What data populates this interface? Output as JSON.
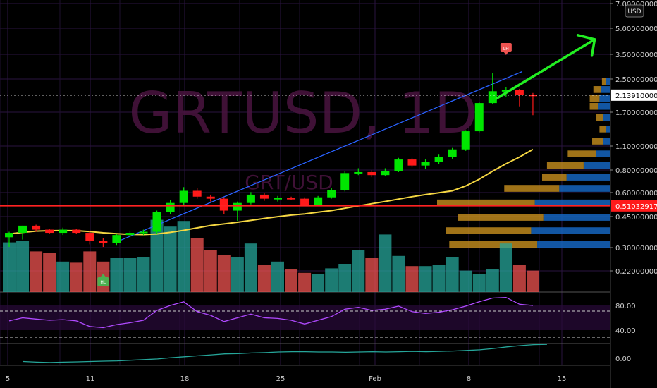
{
  "watermark": {
    "symbol": "GRTUSD, 1D",
    "pair": "GRT/USD"
  },
  "currency_badge": "USD",
  "price_axis": [
    "7.00000000",
    "5.00000000",
    "3.50000000",
    "2.50000000",
    "1.70000000",
    "1.10000000",
    "0.80000000",
    "0.60000000",
    "0.45000000",
    "0.30000000",
    "0.22000000"
  ],
  "current_price_label": "2.13910000",
  "support_price_label": "0.51032917",
  "date_axis": [
    "5",
    "11",
    "18",
    "25",
    "Feb",
    "8",
    "15"
  ],
  "rsi_axis": [
    "80.00",
    "40.00"
  ],
  "osc_axis": [
    "0.00"
  ],
  "markers": {
    "high": "LH",
    "low": "HL"
  },
  "colors": {
    "up": "#00e600",
    "down": "#ff1a1a",
    "vol_up": "#26a69a",
    "vol_down": "#ef5350",
    "ma": "#f5d742",
    "trend": "#2962ff",
    "arrow": "#22ee22",
    "support": "#ff2222",
    "rsi": "#b04aff"
  },
  "chart_data": {
    "type": "candlestick",
    "candles": [
      {
        "o": 0.34,
        "h": 0.365,
        "l": 0.3,
        "c": 0.36
      },
      {
        "o": 0.36,
        "h": 0.395,
        "l": 0.33,
        "c": 0.395
      },
      {
        "o": 0.395,
        "h": 0.4,
        "l": 0.365,
        "c": 0.375
      },
      {
        "o": 0.375,
        "h": 0.38,
        "l": 0.355,
        "c": 0.36
      },
      {
        "o": 0.36,
        "h": 0.385,
        "l": 0.35,
        "c": 0.375
      },
      {
        "o": 0.375,
        "h": 0.38,
        "l": 0.355,
        "c": 0.36
      },
      {
        "o": 0.36,
        "h": 0.37,
        "l": 0.31,
        "c": 0.325
      },
      {
        "o": 0.325,
        "h": 0.335,
        "l": 0.3,
        "c": 0.315
      },
      {
        "o": 0.315,
        "h": 0.355,
        "l": 0.305,
        "c": 0.35
      },
      {
        "o": 0.35,
        "h": 0.37,
        "l": 0.34,
        "c": 0.36
      },
      {
        "o": 0.36,
        "h": 0.375,
        "l": 0.35,
        "c": 0.365
      },
      {
        "o": 0.365,
        "h": 0.48,
        "l": 0.355,
        "c": 0.47
      },
      {
        "o": 0.47,
        "h": 0.55,
        "l": 0.46,
        "c": 0.53
      },
      {
        "o": 0.53,
        "h": 0.65,
        "l": 0.51,
        "c": 0.62
      },
      {
        "o": 0.62,
        "h": 0.64,
        "l": 0.56,
        "c": 0.575
      },
      {
        "o": 0.575,
        "h": 0.59,
        "l": 0.54,
        "c": 0.56
      },
      {
        "o": 0.56,
        "h": 0.57,
        "l": 0.46,
        "c": 0.48
      },
      {
        "o": 0.48,
        "h": 0.54,
        "l": 0.42,
        "c": 0.53
      },
      {
        "o": 0.53,
        "h": 0.61,
        "l": 0.52,
        "c": 0.59
      },
      {
        "o": 0.59,
        "h": 0.6,
        "l": 0.545,
        "c": 0.56
      },
      {
        "o": 0.56,
        "h": 0.58,
        "l": 0.54,
        "c": 0.565
      },
      {
        "o": 0.565,
        "h": 0.575,
        "l": 0.55,
        "c": 0.56
      },
      {
        "o": 0.56,
        "h": 0.57,
        "l": 0.51,
        "c": 0.515
      },
      {
        "o": 0.515,
        "h": 0.58,
        "l": 0.51,
        "c": 0.57
      },
      {
        "o": 0.57,
        "h": 0.64,
        "l": 0.56,
        "c": 0.625
      },
      {
        "o": 0.625,
        "h": 0.8,
        "l": 0.615,
        "c": 0.78
      },
      {
        "o": 0.78,
        "h": 0.83,
        "l": 0.76,
        "c": 0.79
      },
      {
        "o": 0.79,
        "h": 0.81,
        "l": 0.74,
        "c": 0.76
      },
      {
        "o": 0.76,
        "h": 0.83,
        "l": 0.755,
        "c": 0.8
      },
      {
        "o": 0.8,
        "h": 0.95,
        "l": 0.79,
        "c": 0.93
      },
      {
        "o": 0.93,
        "h": 0.95,
        "l": 0.84,
        "c": 0.86
      },
      {
        "o": 0.86,
        "h": 0.93,
        "l": 0.82,
        "c": 0.9
      },
      {
        "o": 0.9,
        "h": 0.99,
        "l": 0.88,
        "c": 0.96
      },
      {
        "o": 0.96,
        "h": 1.08,
        "l": 0.94,
        "c": 1.06
      },
      {
        "o": 1.06,
        "h": 1.36,
        "l": 1.04,
        "c": 1.34
      },
      {
        "o": 1.34,
        "h": 1.95,
        "l": 1.32,
        "c": 1.93
      },
      {
        "o": 1.93,
        "h": 2.85,
        "l": 1.9,
        "c": 2.25
      },
      {
        "o": 2.25,
        "h": 2.37,
        "l": 2.1,
        "c": 2.28
      },
      {
        "o": 2.28,
        "h": 2.32,
        "l": 1.85,
        "c": 2.15
      },
      {
        "o": 2.15,
        "h": 2.2,
        "l": 1.65,
        "c": 2.13
      }
    ],
    "volume": [
      0.44,
      0.45,
      0.36,
      0.35,
      0.27,
      0.26,
      0.36,
      0.27,
      0.3,
      0.3,
      0.31,
      0.64,
      0.58,
      0.63,
      0.48,
      0.37,
      0.33,
      0.31,
      0.43,
      0.24,
      0.27,
      0.2,
      0.17,
      0.16,
      0.21,
      0.25,
      0.37,
      0.3,
      0.51,
      0.32,
      0.23,
      0.23,
      0.24,
      0.31,
      0.19,
      0.16,
      0.2,
      0.43,
      0.24,
      0.19
    ],
    "ma": [
      0.355,
      0.362,
      0.368,
      0.37,
      0.371,
      0.37,
      0.366,
      0.36,
      0.356,
      0.353,
      0.352,
      0.355,
      0.362,
      0.372,
      0.384,
      0.396,
      0.404,
      0.413,
      0.423,
      0.434,
      0.444,
      0.453,
      0.46,
      0.47,
      0.48,
      0.495,
      0.51,
      0.525,
      0.54,
      0.557,
      0.575,
      0.59,
      0.605,
      0.62,
      0.66,
      0.72,
      0.8,
      0.88,
      0.96,
      1.06
    ],
    "rsi": [
      55,
      60,
      58,
      56,
      57,
      55,
      46,
      44,
      49,
      52,
      56,
      72,
      80,
      86,
      70,
      64,
      54,
      60,
      66,
      60,
      59,
      56,
      50,
      56,
      62,
      74,
      77,
      72,
      74,
      79,
      70,
      67,
      69,
      73,
      79,
      86,
      92,
      93,
      82,
      80
    ],
    "osc": [
      -0.1,
      -0.12,
      -0.13,
      -0.12,
      -0.11,
      -0.1,
      -0.09,
      -0.08,
      -0.06,
      -0.04,
      -0.02,
      0.02,
      0.05,
      0.08,
      0.11,
      0.14,
      0.15,
      0.17,
      0.18,
      0.2,
      0.21,
      0.21,
      0.2,
      0.2,
      0.19,
      0.2,
      0.21,
      0.2,
      0.21,
      0.22,
      0.21,
      0.22,
      0.23,
      0.25,
      0.27,
      0.31,
      0.36,
      0.4,
      0.43,
      0.44
    ],
    "volume_profile": [
      {
        "p": 2.55,
        "up": 0.03,
        "down": 0.04
      },
      {
        "p": 2.3,
        "up": 0.06,
        "down": 0.08
      },
      {
        "p": 2.05,
        "up": 0.08,
        "down": 0.09
      },
      {
        "p": 1.85,
        "up": 0.07,
        "down": 0.1
      },
      {
        "p": 1.6,
        "up": 0.06,
        "down": 0.06
      },
      {
        "p": 1.38,
        "up": 0.05,
        "down": 0.04
      },
      {
        "p": 1.18,
        "up": 0.09,
        "down": 0.06
      },
      {
        "p": 1.0,
        "up": 0.23,
        "down": 0.12
      },
      {
        "p": 0.86,
        "up": 0.3,
        "down": 0.22
      },
      {
        "p": 0.74,
        "up": 0.2,
        "down": 0.36
      },
      {
        "p": 0.64,
        "up": 0.45,
        "down": 0.42
      },
      {
        "p": 0.53,
        "up": 0.8,
        "down": 0.62
      },
      {
        "p": 0.44,
        "up": 0.7,
        "down": 0.55
      },
      {
        "p": 0.37,
        "up": 0.7,
        "down": 0.65
      },
      {
        "p": 0.31,
        "up": 0.72,
        "down": 0.6
      }
    ]
  }
}
